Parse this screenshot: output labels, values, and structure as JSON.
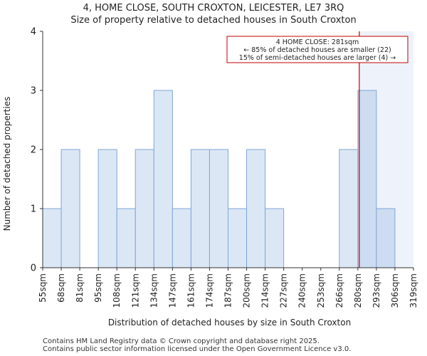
{
  "chart_data": {
    "type": "bar",
    "title": "4, HOME CLOSE, SOUTH CROXTON, LEICESTER, LE7 3RQ",
    "subtitle": "Size of property relative to detached houses in South Croxton",
    "xlabel": "Distribution of detached houses by size in South Croxton",
    "ylabel": "Number of detached properties",
    "bin_edges": [
      55,
      68,
      81,
      95,
      108,
      121,
      134,
      147,
      161,
      174,
      187,
      200,
      214,
      227,
      240,
      253,
      266,
      280,
      293,
      306,
      319
    ],
    "tick_labels": [
      "55sqm",
      "68sqm",
      "81sqm",
      "95sqm",
      "108sqm",
      "121sqm",
      "134sqm",
      "147sqm",
      "161sqm",
      "174sqm",
      "187sqm",
      "200sqm",
      "214sqm",
      "227sqm",
      "240sqm",
      "253sqm",
      "266sqm",
      "280sqm",
      "293sqm",
      "306sqm",
      "319sqm"
    ],
    "values": [
      1,
      2,
      0,
      2,
      1,
      2,
      3,
      1,
      2,
      2,
      1,
      2,
      1,
      0,
      0,
      0,
      2,
      3,
      1,
      0
    ],
    "ylim": [
      0,
      4
    ],
    "yticks": [
      0,
      1,
      2,
      3,
      4
    ],
    "marker": {
      "value": 281,
      "unit": "sqm"
    },
    "annotation": {
      "line1": "4 HOME CLOSE: 281sqm",
      "line2": "← 85% of detached houses are smaller (22)",
      "line3": "15% of semi-detached houses are larger (4) →"
    },
    "colors": {
      "bar_fill": "#dce7f5",
      "bar_fill_highlight": "#cddcf0",
      "bar_edge": "#7fa6d6",
      "highlight_region": "#eef3fb",
      "marker_line": "#c00000",
      "annotation_border": "#c00000"
    }
  },
  "footer": {
    "line1": "Contains HM Land Registry data © Crown copyright and database right 2025.",
    "line2": "Contains public sector information licensed under the Open Government Licence v3.0."
  }
}
